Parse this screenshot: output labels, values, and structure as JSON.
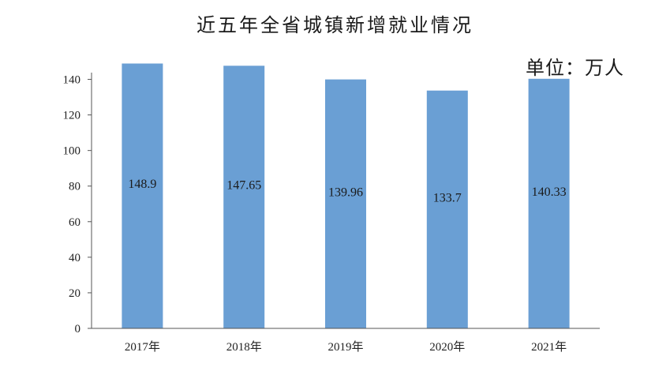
{
  "chart_data": {
    "type": "bar",
    "title": "近五年全省城镇新增就业情况",
    "unit_label": "单位：万人",
    "categories": [
      "2017年",
      "2018年",
      "2019年",
      "2020年",
      "2021年"
    ],
    "values": [
      148.9,
      147.65,
      139.96,
      133.7,
      140.33
    ],
    "data_labels": [
      "148.9",
      "147.65",
      "139.96",
      "133.7",
      "140.33"
    ],
    "ylim": [
      0,
      150
    ],
    "yticks": [
      0,
      20,
      40,
      60,
      80,
      100,
      120,
      140
    ],
    "bar_color": "#6a9fd4",
    "grid": false,
    "xlabel": "",
    "ylabel": ""
  }
}
